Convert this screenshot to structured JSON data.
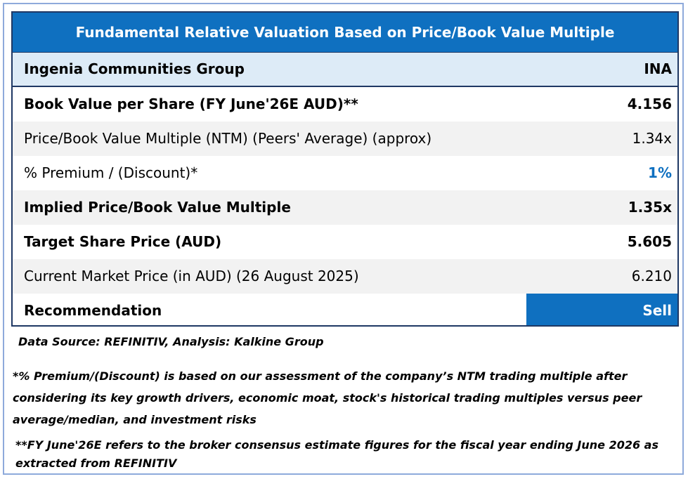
{
  "table": {
    "title": "Fundamental Relative Valuation Based on Price/Book Value Multiple",
    "company": "Ingenia Communities Group",
    "ticker": "INA",
    "rows": [
      {
        "label": "Book Value per Share (FY June'26E AUD)**",
        "value": "4.156"
      },
      {
        "label": "Price/Book Value Multiple (NTM)  (Peers' Average) (approx)",
        "value": "1.34x"
      },
      {
        "label": "% Premium / (Discount)*",
        "value": "1%"
      },
      {
        "label": "Implied Price/Book Value Multiple",
        "value": "1.35x"
      },
      {
        "label": "Target Share Price (AUD)",
        "value": "5.605"
      },
      {
        "label": "Current Market Price (in AUD) (26 August 2025)",
        "value": "6.210"
      }
    ],
    "recommendation_label": "Recommendation",
    "recommendation_value": "Sell"
  },
  "notes": {
    "source": "Data Source: REFINITIV, Analysis: Kalkine Group",
    "premium_note": "*% Premium/(Discount) is based on our assessment of the company’s NTM trading multiple after considering its key growth drivers, economic moat, stock's historical trading multiples versus peer average/median, and investment risks",
    "fy_note": "**FY June'26E refers to the broker consensus estimate figures for the fiscal year ending June 2026  as extracted from REFINITIV"
  },
  "colors": {
    "header_blue": "#0f70c0",
    "company_row": "#ddebf7",
    "border_navy": "#1f3864",
    "outer_frame": "#8eaadb"
  }
}
